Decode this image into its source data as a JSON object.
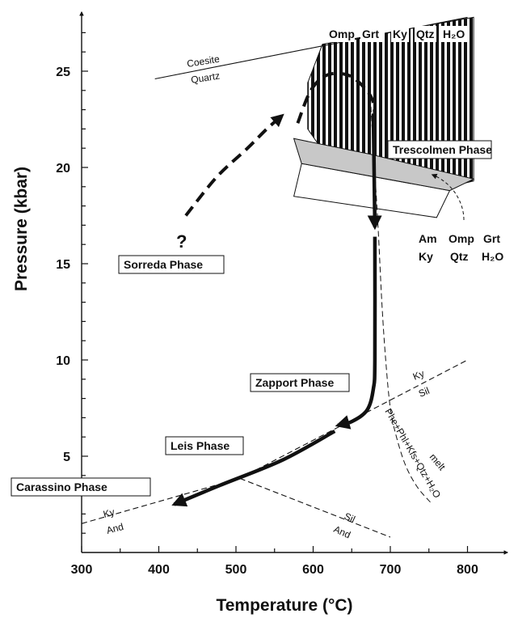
{
  "chart_data": {
    "type": "line",
    "xlabel": "Temperature (°C)",
    "ylabel": "Pressure (kbar)",
    "xlim": [
      300,
      840
    ],
    "ylim": [
      0,
      27.8
    ],
    "x_ticks": [
      300,
      400,
      500,
      600,
      700,
      800
    ],
    "y_ticks": [
      5,
      10,
      15,
      20,
      25
    ],
    "colors": {
      "ink": "#111111",
      "field_fill": "#c8c8c8",
      "background": "#ffffff"
    },
    "reaction_lines": [
      {
        "name": "coesite-quartz",
        "labels": [
          "Coesite",
          "Quartz"
        ],
        "x": [
          395,
          800
        ],
        "y": [
          24.6,
          27.8
        ]
      },
      {
        "name": "ky-and",
        "labels": [
          "Ky",
          "And"
        ],
        "x": [
          300,
          505
        ],
        "y": [
          1.5,
          3.85
        ]
      },
      {
        "name": "ky-sil",
        "labels": [
          "Ky",
          "Sil"
        ],
        "x": [
          505,
          800
        ],
        "y": [
          3.85,
          10.0
        ]
      },
      {
        "name": "sil-and",
        "labels": [
          "Sil",
          "And"
        ],
        "x": [
          505,
          700
        ],
        "y": [
          3.85,
          0.8
        ]
      },
      {
        "name": "melt",
        "labels": [
          "melt",
          "Phe+Phl+Kfs+Qtz+H₂O"
        ],
        "x": [
          672,
          678,
          684,
          689,
          694,
          700,
          708,
          720,
          735,
          752
        ],
        "y": [
          25.0,
          21.0,
          17.0,
          13.0,
          10.0,
          7.5,
          6.0,
          4.5,
          3.4,
          2.6
        ]
      }
    ],
    "fields": [
      {
        "name": "omp-grt-field",
        "label_parts": [
          "Omp",
          "Grt",
          "Ky",
          "Qtz",
          "H₂O"
        ],
        "polygon": [
          [
            593,
            24.4
          ],
          [
            612,
            26.4
          ],
          [
            808,
            27.8
          ],
          [
            808,
            19.3
          ],
          [
            777,
            19.0
          ],
          [
            612,
            20.9
          ],
          [
            593,
            22.0
          ]
        ]
      },
      {
        "name": "trescolmen-grey",
        "polygon": [
          [
            575,
            21.5
          ],
          [
            672,
            20.7
          ],
          [
            808,
            19.4
          ],
          [
            777,
            18.8
          ],
          [
            585,
            20.2
          ]
        ]
      },
      {
        "name": "trescolmen-box",
        "polygon": [
          [
            585,
            20.2
          ],
          [
            777,
            18.8
          ],
          [
            760,
            17.4
          ],
          [
            575,
            18.5
          ]
        ]
      }
    ],
    "series": [
      {
        "name": "prograde-path",
        "style": "dashed",
        "x": [
          435,
          475,
          515,
          540,
          560
        ],
        "y": [
          17.5,
          19.5,
          21.0,
          22.0,
          22.7
        ]
      },
      {
        "name": "peak-loop",
        "style": "dashed",
        "x": [
          580,
          597,
          618,
          645,
          665,
          677,
          680
        ],
        "y": [
          22.3,
          24.0,
          24.8,
          24.8,
          24.2,
          23.5,
          22.7
        ]
      },
      {
        "name": "trescolmen-decompression",
        "style": "solid",
        "x": [
          678,
          680
        ],
        "y": [
          22.8,
          16.9
        ]
      },
      {
        "name": "zapport-decompression",
        "style": "solid",
        "x": [
          680,
          680,
          678,
          670,
          650,
          632
        ],
        "y": [
          16.4,
          10.0,
          8.5,
          7.4,
          6.8,
          6.6
        ]
      },
      {
        "name": "leis-carassino-cooling",
        "style": "solid",
        "x": [
          628,
          560,
          480,
          420
        ],
        "y": [
          6.3,
          4.8,
          3.5,
          2.5
        ]
      }
    ],
    "annotations": {
      "question_mark": "?",
      "sorreda": "Sorreda Phase",
      "trescolmen": "Trescolmen Phase",
      "zapport": "Zapport Phase",
      "leis": "Leis Phase",
      "carassino": "Carassino Phase",
      "assemblage_line1": [
        "Am",
        "Omp",
        "Grt"
      ],
      "assemblage_line2_left": "Ky",
      "assemblage_line2_mid": "Qtz",
      "assemblage_line2_right": "H₂O"
    }
  }
}
